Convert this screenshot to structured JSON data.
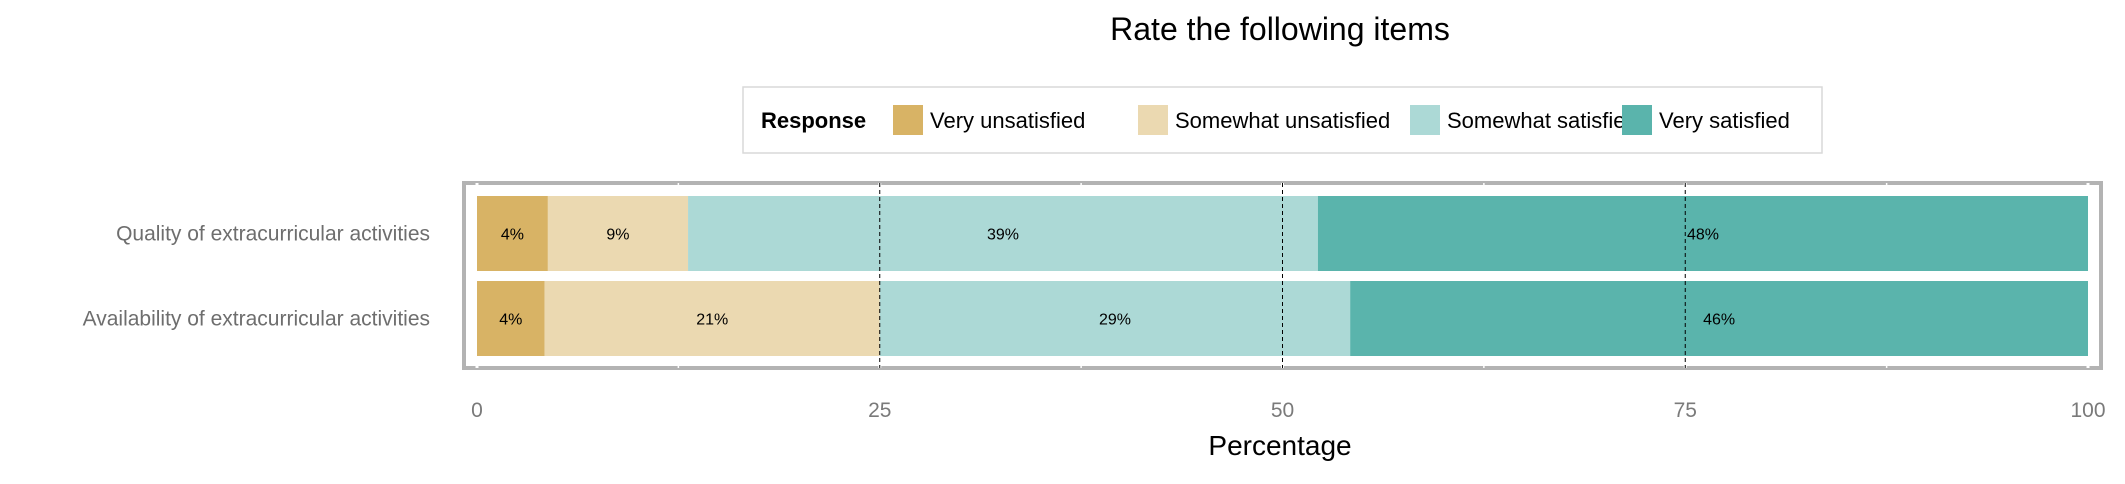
{
  "chart_data": {
    "type": "bar",
    "orientation": "horizontal",
    "stacked": true,
    "title": "Rate the following items",
    "xlabel": "Percentage",
    "ylabel": "",
    "xlim": [
      0,
      100
    ],
    "xticks": [
      0,
      25,
      50,
      75,
      100
    ],
    "grid": true,
    "legend": {
      "title": "Response",
      "position": "top"
    },
    "categories": [
      "Quality of extracurricular activities",
      "Availability of extracurricular activities"
    ],
    "series": [
      {
        "name": "Very unsatisfied",
        "color": "#d8b365",
        "values": [
          4.4,
          4.2
        ],
        "labels": [
          "4%",
          "4%"
        ]
      },
      {
        "name": "Somewhat unsatisfied",
        "color": "#ebd9b1",
        "values": [
          8.7,
          20.8
        ],
        "labels": [
          "9%",
          "21%"
        ]
      },
      {
        "name": "Somewhat satisfied",
        "color": "#acd9d6",
        "values": [
          39.1,
          29.2
        ],
        "labels": [
          "39%",
          "29%"
        ]
      },
      {
        "name": "Very satisfied",
        "color": "#5ab4ac",
        "values": [
          47.8,
          45.8
        ],
        "labels": [
          "48%",
          "46%"
        ]
      }
    ],
    "reference_lines": [
      25,
      50,
      75
    ]
  }
}
